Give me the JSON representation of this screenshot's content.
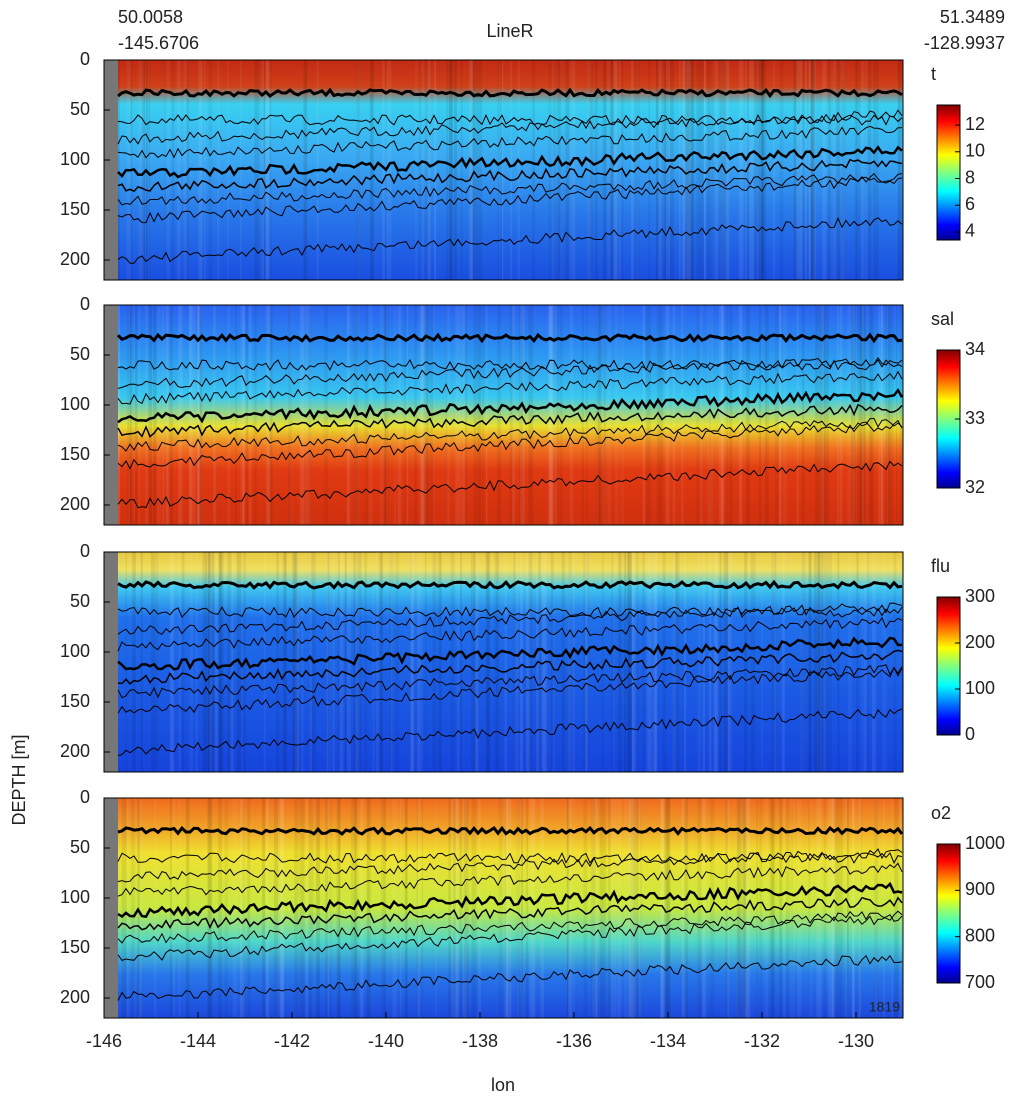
{
  "chart_data": [
    {
      "type": "heatmap",
      "title": "LineR",
      "start": [
        "50.0058",
        "-145.6706"
      ],
      "end": [
        "51.3489",
        "-128.9937"
      ],
      "colorbar_label": "t",
      "clim": [
        3.4,
        13.5
      ],
      "cticks": [
        4,
        6,
        8,
        10,
        12
      ],
      "xlim": [
        -146,
        -129
      ],
      "ylim": [
        0,
        220
      ],
      "yticks": [
        0,
        50,
        100,
        150,
        200
      ]
    },
    {
      "type": "heatmap",
      "colorbar_label": "sal",
      "clim": [
        32,
        34
      ],
      "cticks": [
        32,
        33,
        34
      ],
      "xlim": [
        -146,
        -129
      ],
      "ylim": [
        0,
        220
      ],
      "yticks": [
        0,
        50,
        100,
        150,
        200
      ]
    },
    {
      "type": "heatmap",
      "colorbar_label": "flu",
      "clim": [
        0,
        300
      ],
      "cticks": [
        0,
        100,
        200,
        300
      ],
      "xlim": [
        -146,
        -129
      ],
      "ylim": [
        0,
        220
      ],
      "yticks": [
        0,
        50,
        100,
        150,
        200
      ]
    },
    {
      "type": "heatmap",
      "colorbar_label": "o2",
      "clim": [
        700,
        1000
      ],
      "cticks": [
        700,
        800,
        900,
        1000
      ],
      "xlim": [
        -146,
        -129
      ],
      "ylim": [
        0,
        220
      ],
      "yticks": [
        0,
        50,
        100,
        150,
        200
      ],
      "xticks": [
        -146,
        -144,
        -142,
        -140,
        -138,
        -136,
        -134,
        -132,
        -130
      ],
      "xlabel": "lon",
      "ylabel": "DEPTH [m]",
      "annotation": "1819"
    }
  ]
}
